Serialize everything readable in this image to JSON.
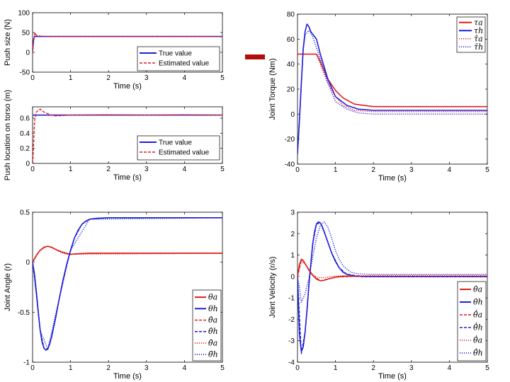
{
  "chart_data": [
    {
      "type": "line",
      "title": "",
      "xlabel": "Time (s)",
      "ylabel": "Push size (N)",
      "xlim": [
        0,
        5
      ],
      "ylim": [
        -50,
        100
      ],
      "xticks": [
        0,
        1,
        2,
        3,
        4,
        5
      ],
      "yticks": [
        -50,
        0,
        50,
        100
      ],
      "legend_position": "bottom-right",
      "series": [
        {
          "name": "True value",
          "style": "solid",
          "color": "#1f1fd6",
          "x": [
            0,
            0.02,
            0.05,
            0.1,
            5
          ],
          "y": [
            0,
            30,
            40,
            40,
            40
          ]
        },
        {
          "name": "Estimated value",
          "style": "dashed",
          "color": "#e01c1c",
          "x": [
            0,
            0.02,
            0.04,
            0.06,
            0.08,
            0.1,
            0.14,
            0.2,
            0.3,
            0.5,
            1,
            2,
            3,
            4,
            5
          ],
          "y": [
            0,
            20,
            35,
            50,
            46,
            43,
            42,
            41,
            40.5,
            40,
            40,
            40,
            40,
            40,
            40
          ]
        }
      ]
    },
    {
      "type": "line",
      "title": "",
      "xlabel": "Time (s)",
      "ylabel": "Push location on torso (m)",
      "xlim": [
        0,
        5
      ],
      "ylim": [
        0,
        0.75
      ],
      "xticks": [
        0,
        1,
        2,
        3,
        4,
        5
      ],
      "yticks": [
        0,
        0.2,
        0.4,
        0.6
      ],
      "legend_position": "bottom-right",
      "series": [
        {
          "name": "True value",
          "style": "solid",
          "color": "#1f1fd6",
          "x": [
            0,
            5
          ],
          "y": [
            0.64,
            0.64
          ]
        },
        {
          "name": "Estimated value",
          "style": "dashed",
          "color": "#e01c1c",
          "x": [
            0,
            0.01,
            0.03,
            0.05,
            0.08,
            0.1,
            0.14,
            0.2,
            0.25,
            0.3,
            0.4,
            0.5,
            0.6,
            1,
            2,
            3,
            4,
            5
          ],
          "y": [
            0,
            0.05,
            0.3,
            0.55,
            0.65,
            0.68,
            0.7,
            0.72,
            0.7,
            0.68,
            0.66,
            0.64,
            0.63,
            0.64,
            0.645,
            0.64,
            0.645,
            0.64
          ]
        }
      ]
    },
    {
      "type": "line",
      "title": "",
      "xlabel": "Time (s)",
      "ylabel": "Joint Torque (Nm)",
      "xlim": [
        0,
        5
      ],
      "ylim": [
        -40,
        80
      ],
      "xticks": [
        0,
        1,
        2,
        3,
        4,
        5
      ],
      "yticks": [
        -40,
        -20,
        0,
        20,
        40,
        60,
        80
      ],
      "legend_position": "top-right",
      "series": [
        {
          "name": "τa",
          "style": "solid",
          "color": "#e01c1c",
          "x": [
            0,
            0.1,
            0.5,
            0.6,
            0.7,
            0.8,
            1.0,
            1.2,
            1.5,
            2.0,
            3,
            4,
            5
          ],
          "y": [
            48,
            48,
            48,
            42,
            35,
            28,
            19,
            13,
            8,
            6,
            6,
            6,
            6
          ]
        },
        {
          "name": "τh",
          "style": "solid",
          "color": "#1f1fd6",
          "x": [
            0,
            0.05,
            0.1,
            0.15,
            0.2,
            0.25,
            0.3,
            0.35,
            0.4,
            0.5,
            0.6,
            0.8,
            1.0,
            1.3,
            1.6,
            2.0,
            3,
            5
          ],
          "y": [
            -32,
            -5,
            25,
            52,
            66,
            72,
            70,
            66,
            64,
            60,
            48,
            28,
            14,
            7,
            4,
            3,
            3,
            3
          ]
        },
        {
          "name": "τ̂a",
          "style": "dotted",
          "color": "#e01c1c",
          "x": [
            0,
            0.1,
            0.5,
            0.6,
            0.7,
            0.8,
            1.0,
            1.2,
            1.5,
            2.0,
            5
          ],
          "y": [
            48,
            48,
            48,
            40,
            32,
            25,
            14,
            7,
            3,
            2,
            2
          ]
        },
        {
          "name": "τ̂h",
          "style": "dotted",
          "color": "#1f1fd6",
          "x": [
            0,
            0.05,
            0.1,
            0.15,
            0.2,
            0.3,
            0.4,
            0.6,
            0.8,
            1.0,
            1.3,
            1.6,
            2.0,
            5
          ],
          "y": [
            -30,
            -8,
            22,
            50,
            63,
            67,
            62,
            44,
            25,
            10,
            4,
            1,
            0,
            0
          ]
        }
      ]
    },
    {
      "type": "line",
      "title": "",
      "xlabel": "Time (s)",
      "ylabel": "Joint Angle (r)",
      "xlim": [
        0,
        5
      ],
      "ylim": [
        -1,
        0.5
      ],
      "xticks": [
        0,
        1,
        2,
        3,
        4,
        5
      ],
      "yticks": [
        -1,
        -0.5,
        0,
        0.5
      ],
      "yticklabels": [
        "-1",
        "-0.5",
        "0",
        "0.5"
      ],
      "legend_position": "bottom-right",
      "series": [
        {
          "name": "θa",
          "style": "solid",
          "color": "#e01c1c",
          "x": [
            0,
            0.1,
            0.2,
            0.3,
            0.4,
            0.5,
            0.6,
            0.7,
            0.8,
            0.9,
            1.0,
            1.2,
            1.5,
            2,
            3,
            4,
            5
          ],
          "y": [
            0,
            0.07,
            0.12,
            0.15,
            0.16,
            0.15,
            0.13,
            0.11,
            0.095,
            0.085,
            0.08,
            0.085,
            0.09,
            0.09,
            0.09,
            0.09,
            0.09
          ]
        },
        {
          "name": "θh",
          "style": "solid",
          "color": "#1f1fd6",
          "x": [
            0,
            0.05,
            0.1,
            0.15,
            0.2,
            0.25,
            0.3,
            0.35,
            0.4,
            0.45,
            0.5,
            0.6,
            0.7,
            0.8,
            0.9,
            1.0,
            1.1,
            1.2,
            1.3,
            1.4,
            1.5,
            1.7,
            2,
            3,
            4,
            5
          ],
          "y": [
            0,
            -0.12,
            -0.3,
            -0.5,
            -0.68,
            -0.8,
            -0.86,
            -0.88,
            -0.87,
            -0.82,
            -0.75,
            -0.57,
            -0.37,
            -0.18,
            -0.02,
            0.12,
            0.24,
            0.32,
            0.38,
            0.41,
            0.43,
            0.44,
            0.445,
            0.445,
            0.445,
            0.445
          ]
        },
        {
          "name": "θ̂a",
          "style": "dashed",
          "color": "#e01c1c",
          "x": [
            0,
            0.1,
            0.2,
            0.3,
            0.4,
            0.5,
            0.6,
            0.8,
            1.0,
            1.5,
            5
          ],
          "y": [
            0,
            0.07,
            0.12,
            0.15,
            0.16,
            0.15,
            0.13,
            0.095,
            0.08,
            0.09,
            0.09
          ]
        },
        {
          "name": "θ̂h",
          "style": "dashed",
          "color": "#1f1fd6",
          "x": [
            0,
            0.1,
            0.2,
            0.3,
            0.4,
            0.5,
            0.7,
            0.9,
            1.1,
            1.3,
            1.5,
            2,
            5
          ],
          "y": [
            0,
            -0.3,
            -0.68,
            -0.86,
            -0.87,
            -0.75,
            -0.37,
            -0.02,
            0.24,
            0.38,
            0.43,
            0.445,
            0.445
          ]
        },
        {
          "name": "θ̄a",
          "style": "dotted",
          "color": "#e01c1c",
          "x": [
            0,
            0.2,
            0.4,
            0.6,
            1.0,
            5
          ],
          "y": [
            0,
            0.12,
            0.16,
            0.13,
            0.08,
            0.09
          ]
        },
        {
          "name": "θ̄h",
          "style": "dotted",
          "color": "#1f1fd6",
          "x": [
            0,
            0.2,
            0.4,
            0.7,
            1.0,
            1.5,
            5
          ],
          "y": [
            0,
            -0.68,
            -0.87,
            -0.37,
            0.12,
            0.43,
            0.445
          ]
        }
      ]
    },
    {
      "type": "line",
      "title": "",
      "xlabel": "Time (s)",
      "ylabel": "Joint Velocity (r/s)",
      "xlim": [
        0,
        5
      ],
      "ylim": [
        -4,
        3
      ],
      "xticks": [
        0,
        1,
        2,
        3,
        4,
        5
      ],
      "yticks": [
        -4,
        -3,
        -2,
        -1,
        0,
        1,
        2,
        3
      ],
      "legend_position": "right",
      "series": [
        {
          "name": "θ̇a",
          "style": "solid",
          "color": "#e01c1c",
          "x": [
            0,
            0.05,
            0.1,
            0.15,
            0.2,
            0.3,
            0.4,
            0.5,
            0.6,
            0.7,
            0.8,
            1.0,
            1.2,
            1.5,
            2,
            5
          ],
          "y": [
            0,
            0.55,
            0.8,
            0.75,
            0.6,
            0.3,
            0.05,
            -0.12,
            -0.2,
            -0.18,
            -0.12,
            -0.03,
            0.02,
            0.01,
            0,
            0
          ]
        },
        {
          "name": "θ̇h",
          "style": "solid",
          "color": "#1f1fd6",
          "x": [
            0,
            0.05,
            0.1,
            0.15,
            0.2,
            0.25,
            0.3,
            0.35,
            0.4,
            0.45,
            0.5,
            0.55,
            0.6,
            0.65,
            0.7,
            0.8,
            0.9,
            1.0,
            1.1,
            1.2,
            1.3,
            1.5,
            1.7,
            2,
            5
          ],
          "y": [
            0,
            -2.7,
            -3.5,
            -3.3,
            -2.6,
            -1.6,
            -0.4,
            0.6,
            1.5,
            2.1,
            2.45,
            2.55,
            2.5,
            2.35,
            2.1,
            1.6,
            1.1,
            0.7,
            0.4,
            0.2,
            0.1,
            0.02,
            0,
            0,
            0
          ]
        },
        {
          "name": "θ̂̇a",
          "style": "dashed",
          "color": "#e01c1c",
          "x": [
            0,
            0.1,
            0.2,
            0.4,
            0.6,
            0.8,
            1.0,
            1.5,
            5
          ],
          "y": [
            0,
            0.8,
            0.6,
            0.05,
            -0.2,
            -0.12,
            -0.03,
            0.01,
            0
          ]
        },
        {
          "name": "θ̂̇h",
          "style": "dashed",
          "color": "#1f1fd6",
          "x": [
            0,
            0.1,
            0.2,
            0.3,
            0.4,
            0.5,
            0.6,
            0.7,
            0.9,
            1.1,
            1.3,
            1.7,
            5
          ],
          "y": [
            0,
            -3.6,
            -2.6,
            -0.4,
            1.5,
            2.45,
            2.5,
            2.1,
            1.1,
            0.4,
            0.1,
            0,
            0
          ]
        },
        {
          "name": "θ̄̇a",
          "style": "dotted",
          "color": "#e01c1c",
          "x": [
            0,
            0.1,
            0.2,
            0.3,
            0.4,
            0.5,
            0.7,
            1.0,
            1.5,
            2,
            5
          ],
          "y": [
            0,
            0.7,
            0.6,
            0.3,
            0.1,
            -0.05,
            -0.05,
            0.02,
            0.03,
            0.05,
            0.05
          ]
        },
        {
          "name": "θ̄̇h",
          "style": "dotted",
          "color": "#1f1fd6",
          "x": [
            0,
            0.05,
            0.1,
            0.2,
            0.3,
            0.4,
            0.5,
            0.6,
            0.7,
            0.8,
            0.9,
            1.0,
            1.1,
            1.2,
            1.4,
            1.6,
            2,
            5
          ],
          "y": [
            0,
            -0.5,
            -1.2,
            -0.8,
            -0.1,
            0.9,
            1.8,
            2.4,
            2.55,
            2.3,
            1.8,
            1.2,
            0.8,
            0.5,
            0.2,
            0.12,
            0.1,
            0.1
          ]
        }
      ]
    }
  ]
}
